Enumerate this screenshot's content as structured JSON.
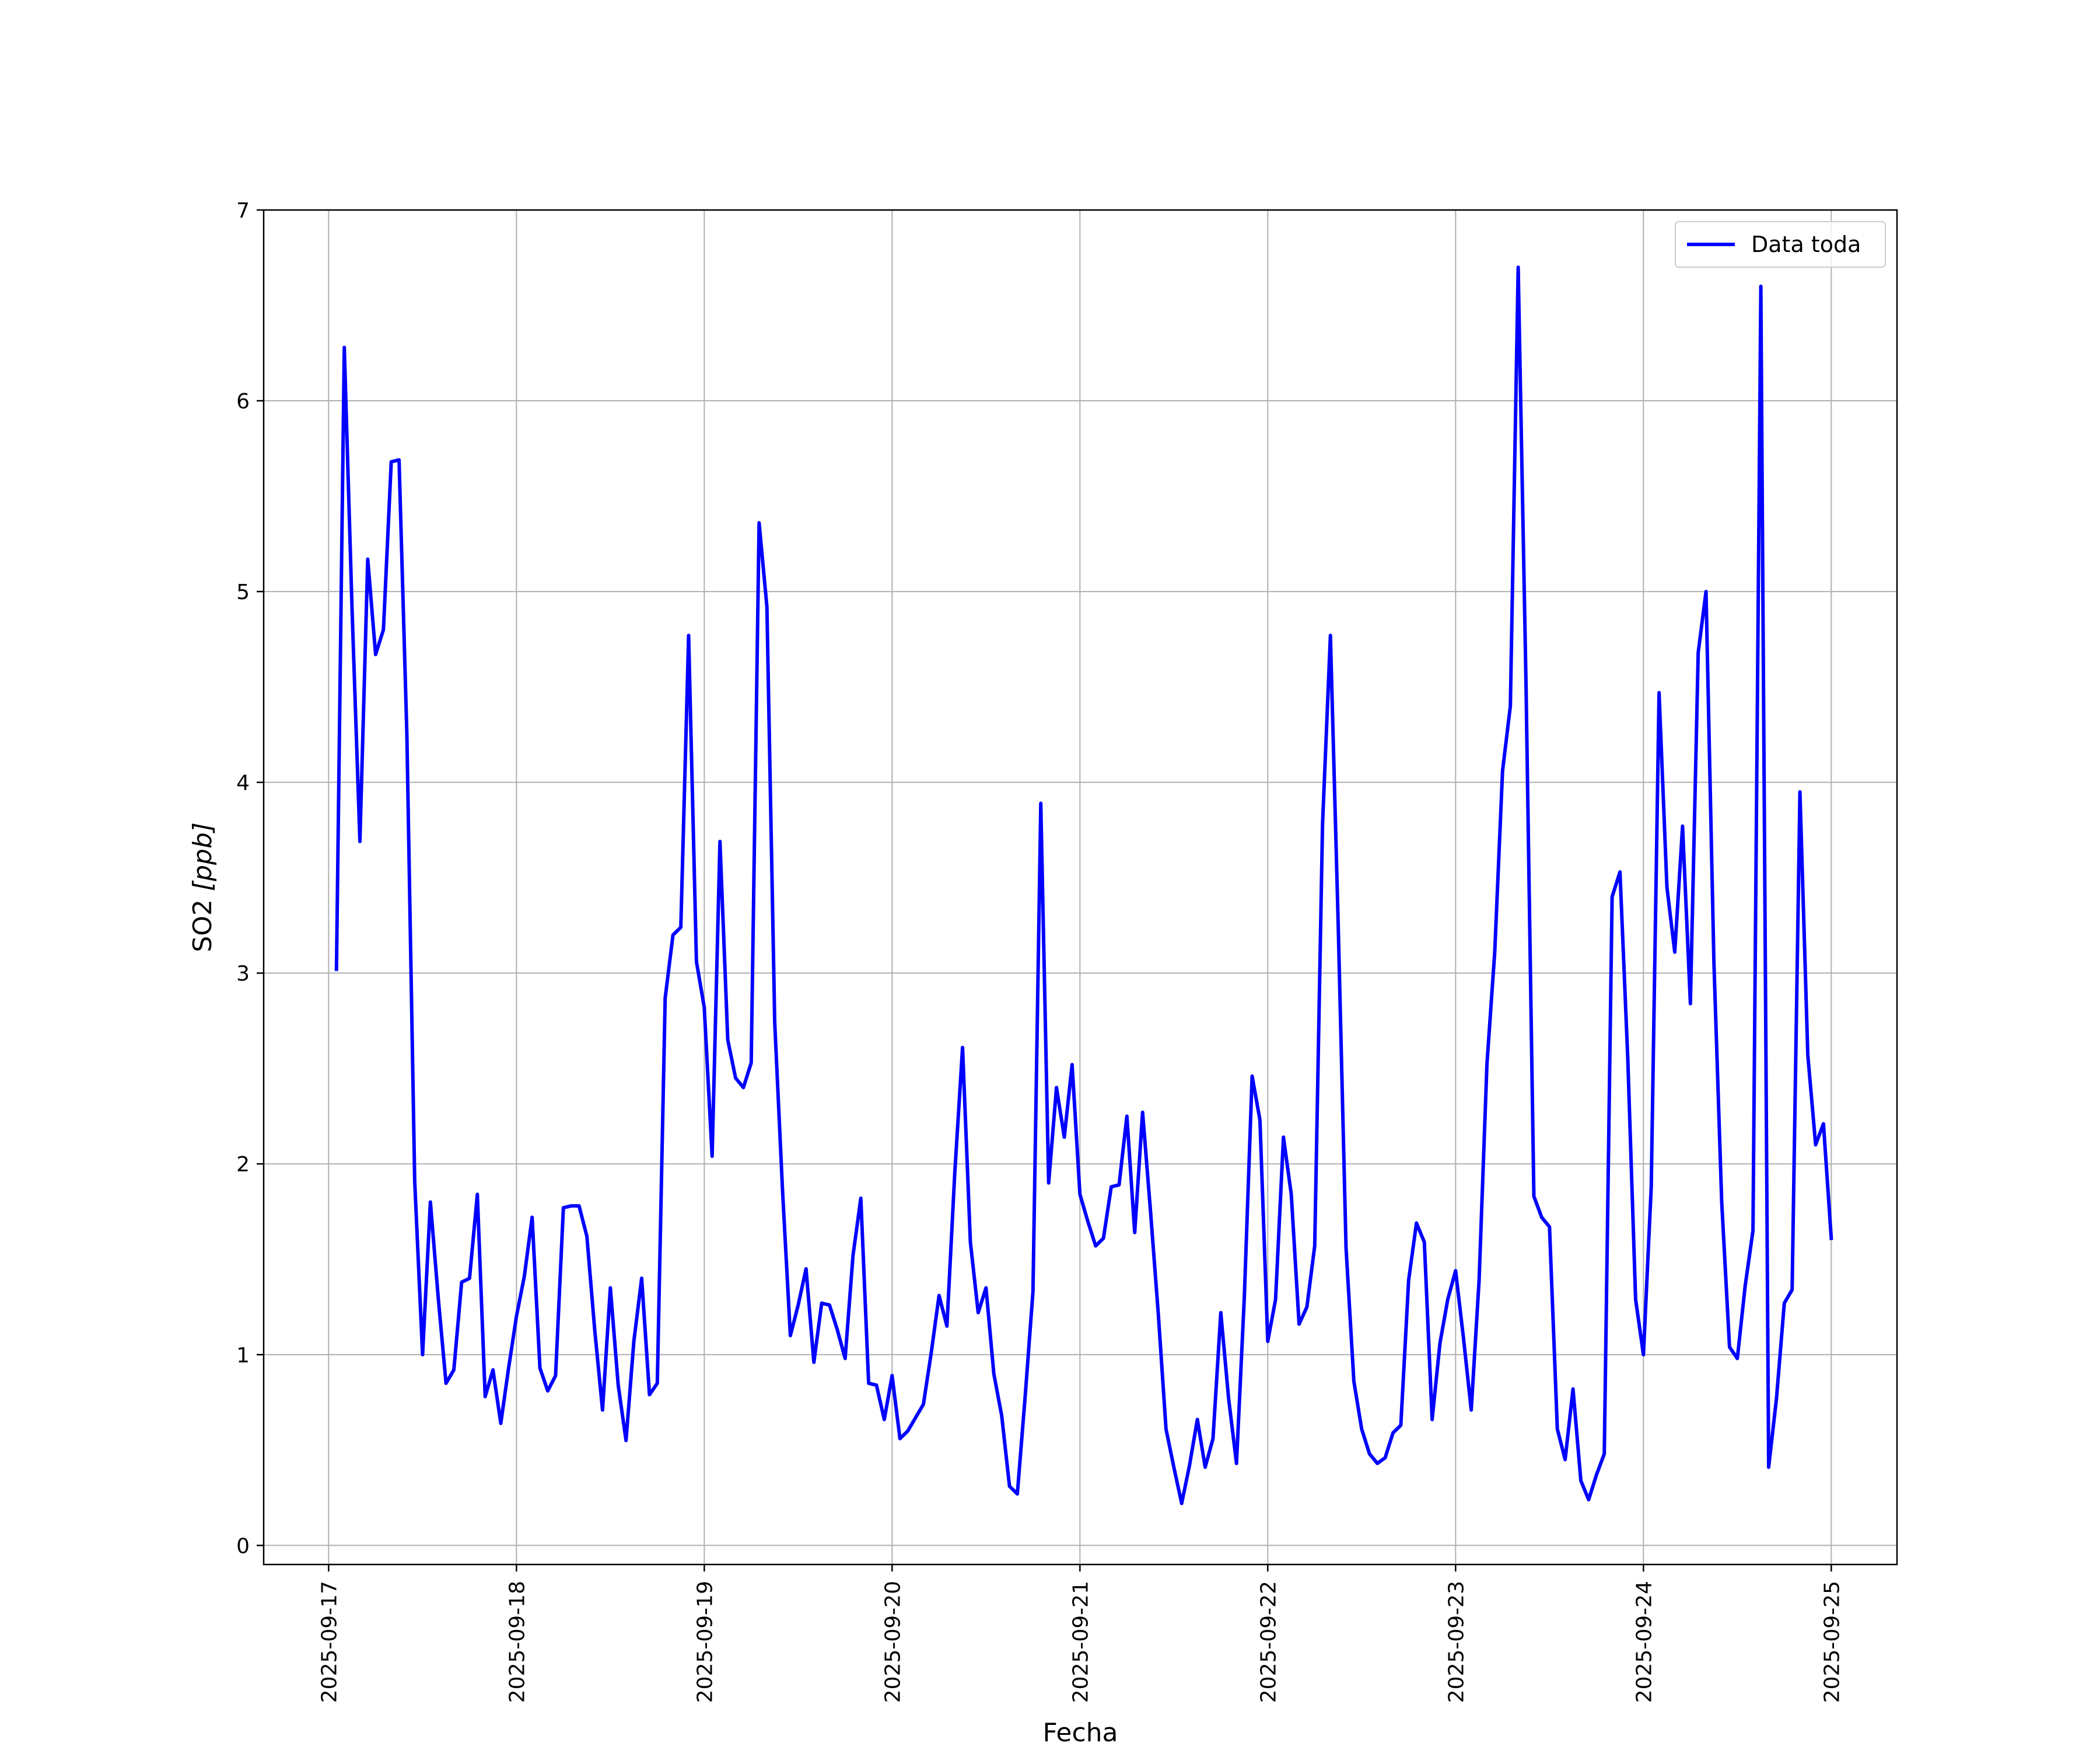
{
  "chart_data": {
    "type": "line",
    "title": "",
    "xlabel": "Fecha",
    "ylabel_text": "SO2 ",
    "ylabel_unit": "[ppb]",
    "x_ticks": [
      "2025-09-17",
      "2025-09-18",
      "2025-09-19",
      "2025-09-20",
      "2025-09-21",
      "2025-09-22",
      "2025-09-23",
      "2025-09-24",
      "2025-09-25"
    ],
    "y_ticks": [
      "0",
      "1",
      "2",
      "3",
      "4",
      "5",
      "6",
      "7"
    ],
    "ylim": [
      -0.1,
      7.0
    ],
    "xlim": [
      "2025-09-16 15:42",
      "2025-09-25 08:24"
    ],
    "grid": true,
    "legend_position": "top-right",
    "series": [
      {
        "name": "Data toda",
        "color": "#0000ff",
        "x": [
          "2025-09-17 01:00",
          "2025-09-17 02:00",
          "2025-09-17 03:00",
          "2025-09-17 04:00",
          "2025-09-17 05:00",
          "2025-09-17 06:00",
          "2025-09-17 07:00",
          "2025-09-17 08:00",
          "2025-09-17 09:00",
          "2025-09-17 10:00",
          "2025-09-17 11:00",
          "2025-09-17 12:00",
          "2025-09-17 13:00",
          "2025-09-17 14:00",
          "2025-09-17 15:00",
          "2025-09-17 16:00",
          "2025-09-17 17:00",
          "2025-09-17 18:00",
          "2025-09-17 19:00",
          "2025-09-17 20:00",
          "2025-09-17 21:00",
          "2025-09-17 22:00",
          "2025-09-17 23:00",
          "2025-09-18 00:00",
          "2025-09-18 01:00",
          "2025-09-18 02:00",
          "2025-09-18 03:00",
          "2025-09-18 04:00",
          "2025-09-18 05:00",
          "2025-09-18 06:00",
          "2025-09-18 07:00",
          "2025-09-18 08:00",
          "2025-09-18 09:00",
          "2025-09-18 10:00",
          "2025-09-18 11:00",
          "2025-09-18 12:00",
          "2025-09-18 13:00",
          "2025-09-18 14:00",
          "2025-09-18 15:00",
          "2025-09-18 16:00",
          "2025-09-18 17:00",
          "2025-09-18 18:00",
          "2025-09-18 19:00",
          "2025-09-18 20:00",
          "2025-09-18 21:00",
          "2025-09-18 22:00",
          "2025-09-18 23:00",
          "2025-09-19 00:00",
          "2025-09-19 01:00",
          "2025-09-19 02:00",
          "2025-09-19 03:00",
          "2025-09-19 04:00",
          "2025-09-19 05:00",
          "2025-09-19 06:00",
          "2025-09-19 07:00",
          "2025-09-19 08:00",
          "2025-09-19 09:00",
          "2025-09-19 10:00",
          "2025-09-19 11:00",
          "2025-09-19 12:00",
          "2025-09-19 13:00",
          "2025-09-19 14:00",
          "2025-09-19 15:00",
          "2025-09-19 16:00",
          "2025-09-19 17:00",
          "2025-09-19 18:00",
          "2025-09-19 19:00",
          "2025-09-19 20:00",
          "2025-09-19 21:00",
          "2025-09-19 22:00",
          "2025-09-19 23:00",
          "2025-09-20 00:00",
          "2025-09-20 01:00",
          "2025-09-20 02:00",
          "2025-09-20 03:00",
          "2025-09-20 04:00",
          "2025-09-20 05:00",
          "2025-09-20 06:00",
          "2025-09-20 07:00",
          "2025-09-20 08:00",
          "2025-09-20 09:00",
          "2025-09-20 10:00",
          "2025-09-20 11:00",
          "2025-09-20 12:00",
          "2025-09-20 13:00",
          "2025-09-20 14:00",
          "2025-09-20 15:00",
          "2025-09-20 16:00",
          "2025-09-20 17:00",
          "2025-09-20 18:00",
          "2025-09-20 19:00",
          "2025-09-20 20:00",
          "2025-09-20 21:00",
          "2025-09-20 22:00",
          "2025-09-20 23:00",
          "2025-09-21 00:00",
          "2025-09-21 01:00",
          "2025-09-21 02:00",
          "2025-09-21 03:00",
          "2025-09-21 04:00",
          "2025-09-21 05:00",
          "2025-09-21 06:00",
          "2025-09-21 07:00",
          "2025-09-21 08:00",
          "2025-09-21 09:00",
          "2025-09-21 10:00",
          "2025-09-21 11:00",
          "2025-09-21 12:00",
          "2025-09-21 13:00",
          "2025-09-21 14:00",
          "2025-09-21 15:00",
          "2025-09-21 16:00",
          "2025-09-21 17:00",
          "2025-09-21 18:00",
          "2025-09-21 19:00",
          "2025-09-21 20:00",
          "2025-09-21 21:00",
          "2025-09-21 22:00",
          "2025-09-21 23:00",
          "2025-09-22 00:00",
          "2025-09-22 01:00",
          "2025-09-22 02:00",
          "2025-09-22 03:00",
          "2025-09-22 04:00",
          "2025-09-22 05:00",
          "2025-09-22 06:00",
          "2025-09-22 07:00",
          "2025-09-22 08:00",
          "2025-09-22 09:00",
          "2025-09-22 10:00",
          "2025-09-22 11:00",
          "2025-09-22 12:00",
          "2025-09-22 13:00",
          "2025-09-22 14:00",
          "2025-09-22 15:00",
          "2025-09-22 16:00",
          "2025-09-22 17:00",
          "2025-09-22 18:00",
          "2025-09-22 19:00",
          "2025-09-22 20:00",
          "2025-09-22 21:00",
          "2025-09-22 22:00",
          "2025-09-22 23:00",
          "2025-09-23 00:00",
          "2025-09-23 01:00",
          "2025-09-23 02:00",
          "2025-09-23 03:00",
          "2025-09-23 04:00",
          "2025-09-23 05:00",
          "2025-09-23 06:00",
          "2025-09-23 07:00",
          "2025-09-23 08:00",
          "2025-09-23 09:00",
          "2025-09-23 10:00",
          "2025-09-23 11:00",
          "2025-09-23 12:00",
          "2025-09-23 13:00",
          "2025-09-23 14:00",
          "2025-09-23 15:00",
          "2025-09-23 16:00",
          "2025-09-23 17:00",
          "2025-09-23 18:00",
          "2025-09-23 19:00",
          "2025-09-23 20:00",
          "2025-09-23 21:00",
          "2025-09-23 22:00",
          "2025-09-23 23:00",
          "2025-09-24 00:00",
          "2025-09-24 01:00",
          "2025-09-24 02:00",
          "2025-09-24 03:00",
          "2025-09-24 04:00",
          "2025-09-24 05:00",
          "2025-09-24 06:00",
          "2025-09-24 07:00",
          "2025-09-24 08:00",
          "2025-09-24 09:00",
          "2025-09-24 10:00",
          "2025-09-24 11:00",
          "2025-09-24 12:00",
          "2025-09-24 13:00",
          "2025-09-24 14:00",
          "2025-09-24 15:00",
          "2025-09-24 16:00",
          "2025-09-24 17:00",
          "2025-09-24 18:00",
          "2025-09-24 19:00",
          "2025-09-24 20:00",
          "2025-09-24 21:00",
          "2025-09-24 22:00",
          "2025-09-24 23:00",
          "2025-09-25 00:00"
        ],
        "values": [
          3.02,
          6.28,
          4.9,
          3.69,
          5.17,
          4.67,
          4.8,
          5.68,
          5.69,
          4.25,
          1.91,
          1.0,
          1.8,
          1.3,
          0.85,
          0.92,
          1.38,
          1.4,
          1.84,
          0.78,
          0.92,
          0.64,
          0.93,
          1.2,
          1.41,
          1.72,
          0.93,
          0.81,
          0.89,
          1.77,
          1.78,
          1.78,
          1.62,
          1.13,
          0.71,
          1.35,
          0.84,
          0.55,
          1.07,
          1.4,
          0.79,
          0.85,
          2.87,
          3.2,
          3.24,
          4.77,
          3.06,
          2.82,
          2.04,
          3.69,
          2.65,
          2.45,
          2.4,
          2.53,
          5.36,
          4.92,
          2.74,
          1.86,
          1.1,
          1.26,
          1.45,
          0.96,
          1.27,
          1.26,
          1.13,
          0.98,
          1.52,
          1.82,
          0.85,
          0.84,
          0.66,
          0.89,
          0.56,
          0.6,
          0.67,
          0.74,
          1.01,
          1.31,
          1.15,
          1.95,
          2.61,
          1.59,
          1.22,
          1.35,
          0.9,
          0.68,
          0.31,
          0.27,
          0.78,
          1.33,
          3.89,
          1.9,
          2.4,
          2.14,
          2.52,
          1.84,
          1.7,
          1.57,
          1.61,
          1.88,
          1.89,
          2.25,
          1.64,
          2.27,
          1.76,
          1.22,
          0.61,
          0.41,
          0.22,
          0.42,
          0.66,
          0.41,
          0.56,
          1.22,
          0.77,
          0.43,
          1.3,
          2.46,
          2.23,
          1.07,
          1.29,
          2.14,
          1.84,
          1.16,
          1.25,
          1.57,
          3.78,
          4.77,
          3.25,
          1.56,
          0.86,
          0.61,
          0.48,
          0.43,
          0.46,
          0.59,
          0.63,
          1.39,
          1.69,
          1.59,
          0.66,
          1.06,
          1.29,
          1.44,
          1.09,
          0.71,
          1.39,
          2.52,
          3.11,
          4.06,
          4.4,
          6.7,
          4.5,
          1.83,
          1.72,
          1.67,
          0.61,
          0.45,
          0.82,
          0.34,
          0.24,
          0.37,
          0.48,
          3.4,
          3.53,
          2.55,
          1.29,
          1.0,
          1.88,
          4.47,
          3.45,
          3.11,
          3.77,
          2.84,
          4.68,
          5.0,
          3.06,
          1.8,
          1.04,
          0.98,
          1.36,
          1.65,
          6.6,
          0.41,
          0.77,
          1.27,
          1.34,
          3.95,
          2.57,
          2.1,
          2.21,
          1.61
        ]
      }
    ]
  }
}
